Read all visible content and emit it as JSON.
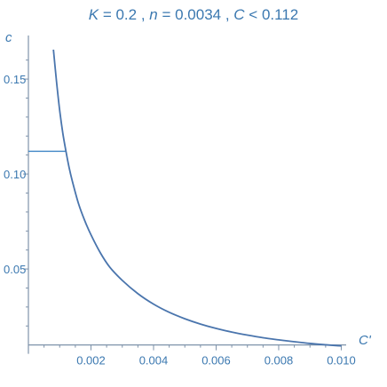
{
  "chart_data": {
    "type": "line",
    "title_parts": [
      {
        "t": "K",
        "italic": true
      },
      {
        "t": " = 0.2 , ",
        "italic": false
      },
      {
        "t": "n",
        "italic": true
      },
      {
        "t": " = 0.0034 , ",
        "italic": false
      },
      {
        "t": "C",
        "italic": true
      },
      {
        "t": " < 0.112",
        "italic": false
      }
    ],
    "xlabel": "C'",
    "ylabel": "c",
    "xlim": [
      0,
      0.0101
    ],
    "ylim": [
      0.0075,
      0.172
    ],
    "x_origin": 0,
    "y_origin": 0.01,
    "xticks": [
      {
        "v": 0.002,
        "label": "0.002"
      },
      {
        "v": 0.004,
        "label": "0.004"
      },
      {
        "v": 0.006,
        "label": "0.006"
      },
      {
        "v": 0.008,
        "label": "0.008"
      },
      {
        "v": 0.01,
        "label": "0.010"
      }
    ],
    "yticks": [
      {
        "v": 0.05,
        "label": "0.05"
      },
      {
        "v": 0.1,
        "label": "0.10"
      },
      {
        "v": 0.15,
        "label": "0.15"
      }
    ],
    "minor_xticks": [
      0.0005,
      0.001,
      0.0015,
      0.0025,
      0.003,
      0.0035,
      0.0045,
      0.005,
      0.0055,
      0.0065,
      0.007,
      0.0075,
      0.0085,
      0.009,
      0.0095
    ],
    "minor_yticks": [
      0.02,
      0.03,
      0.04,
      0.06,
      0.07,
      0.08,
      0.09,
      0.11,
      0.12,
      0.13,
      0.14,
      0.16
    ],
    "series": [
      {
        "x": [
          0.0008,
          0.0009,
          0.001,
          0.0011,
          0.0012,
          0.0013,
          0.0014,
          0.0016,
          0.0018,
          0.002,
          0.0023,
          0.0026,
          0.003,
          0.0035,
          0.004,
          0.0045,
          0.005,
          0.0055,
          0.006,
          0.0065,
          0.007,
          0.0075,
          0.008,
          0.0085,
          0.009,
          0.0095,
          0.01
        ],
        "y": [
          0.1655,
          0.1485,
          0.1335,
          0.1215,
          0.112,
          0.1035,
          0.0965,
          0.0845,
          0.0755,
          0.068,
          0.0585,
          0.051,
          0.044,
          0.037,
          0.0315,
          0.0272,
          0.0238,
          0.021,
          0.0187,
          0.0168,
          0.0152,
          0.0138,
          0.0127,
          0.0117,
          0.0108,
          0.0101,
          0.0095
        ],
        "color": "#4a75ad"
      }
    ],
    "reference_line": {
      "y": 0.112,
      "x_from": 0,
      "x_to": 0.00119,
      "color": "#3f86c6"
    }
  }
}
